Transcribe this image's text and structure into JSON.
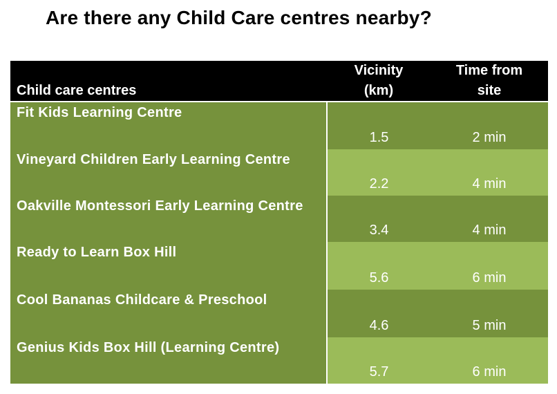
{
  "title": "Are there any Child Care centres nearby?",
  "table": {
    "headers": {
      "name": "Child care centres",
      "vicinity_line1": "Vicinity",
      "vicinity_line2": "(km)",
      "time_line1": "Time from",
      "time_line2": "site"
    },
    "rows": [
      {
        "name": "Fit Kids Learning Centre",
        "vicinity": "1.5",
        "time": "2 min"
      },
      {
        "name": "Vineyard Children Early Learning Centre",
        "vicinity": "2.2",
        "time": "4 min"
      },
      {
        "name": "Oakville Montessori Early Learning Centre",
        "vicinity": "3.4",
        "time": "4 min"
      },
      {
        "name": "Ready to Learn Box Hill",
        "vicinity": "5.6",
        "time": "6 min"
      },
      {
        "name": "Cool Bananas Childcare & Preschool",
        "vicinity": "4.6",
        "time": "5 min"
      },
      {
        "name": "Genius Kids Box Hill (Learning Centre)",
        "vicinity": "5.7",
        "time": "6 min"
      }
    ]
  },
  "colors": {
    "header_bg": "#000000",
    "dark_green": "#76923c",
    "light_green": "#9bbb59",
    "text": "#ffffff"
  }
}
